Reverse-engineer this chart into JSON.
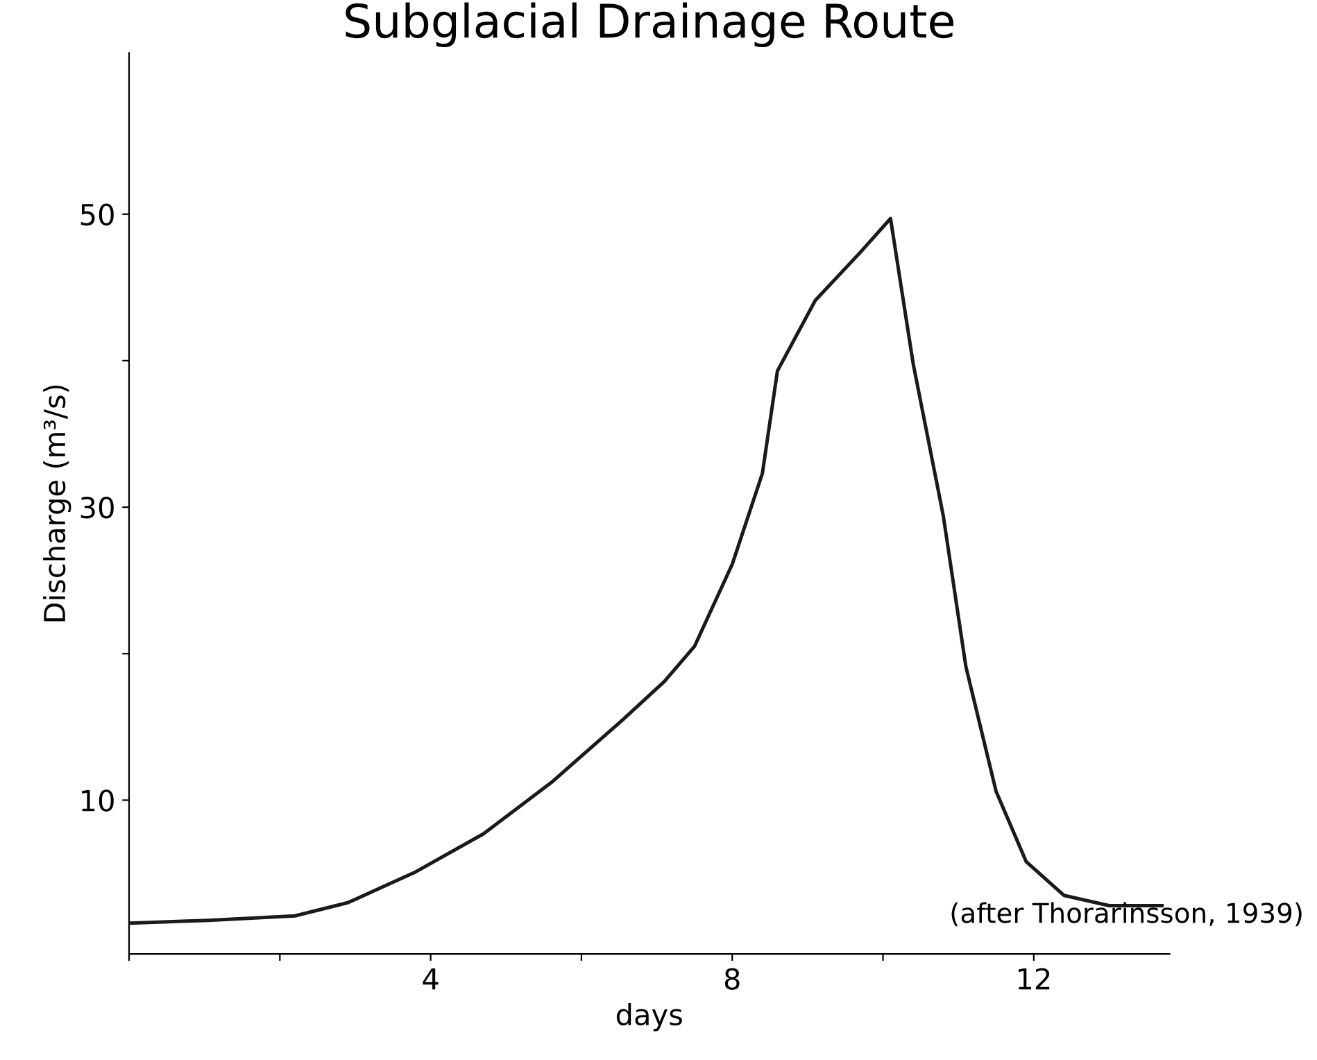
{
  "chart_data": {
    "type": "line",
    "title": "Subglacial Drainage Route",
    "xlabel": "days",
    "ylabel": "Discharge (m³/s)",
    "annotations": [
      "(after Thorarinsson, 1939)"
    ],
    "series": [
      {
        "color": "#1a1a1a",
        "x": [
          0,
          1.05,
          2.2,
          2.9,
          3.8,
          4.7,
          5.6,
          6.55,
          7.1,
          7.5,
          8.0,
          8.4,
          8.6,
          9.1,
          9.7,
          10.1,
          10.4,
          10.8,
          11.1,
          11.5,
          11.9,
          12.4,
          13.0,
          13.7
        ],
        "values": [
          1.6,
          1.8,
          2.1,
          3.0,
          5.1,
          7.7,
          11.2,
          15.5,
          18.1,
          20.5,
          26.1,
          32.3,
          39.3,
          44.1,
          47.4,
          49.7,
          39.8,
          29.4,
          19.1,
          10.6,
          5.8,
          3.5,
          2.8,
          2.8
        ]
      }
    ],
    "xlim": [
      0,
      13.8
    ],
    "ylim": [
      -0.5,
      61
    ],
    "xticks": [
      {
        "value": 0,
        "label": null
      },
      {
        "value": 2,
        "label": null
      },
      4,
      {
        "value": 6,
        "label": null
      },
      8,
      {
        "value": 10,
        "label": null
      },
      12
    ],
    "yticks": [
      10,
      {
        "value": 20,
        "label": null
      },
      30,
      {
        "value": 40,
        "label": null
      },
      50
    ],
    "grid": false,
    "legend": false,
    "marker": "none",
    "line_style": "solid"
  }
}
